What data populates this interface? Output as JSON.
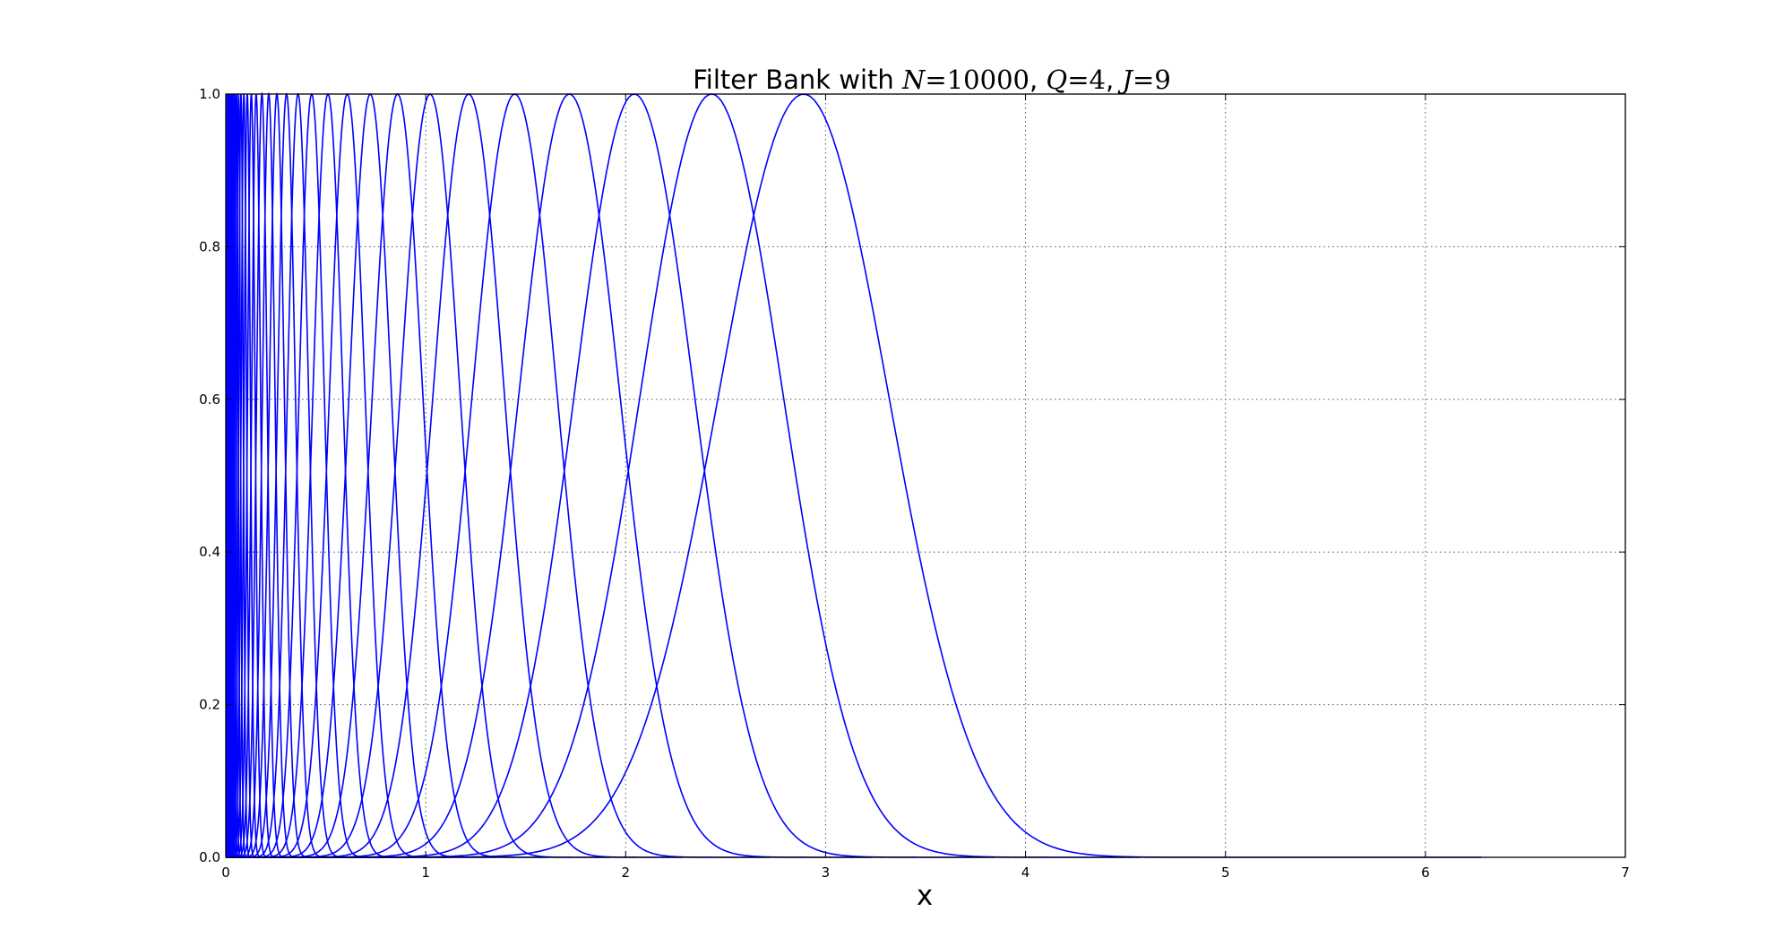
{
  "chart_data": {
    "type": "line",
    "title": {
      "prefix": "Filter Bank with ",
      "N_symbol": "N",
      "N_value": "10000",
      "Q_symbol": "Q",
      "Q_value": "4",
      "J_symbol": "J",
      "J_value": "9",
      "equals": "=",
      "separator": ", "
    },
    "xlabel": "x",
    "ylabel": "",
    "xlim": [
      0,
      7
    ],
    "ylim": [
      0,
      1
    ],
    "x_ticks": [
      "0",
      "1",
      "2",
      "3",
      "4",
      "5",
      "6",
      "7"
    ],
    "y_ticks": [
      "0.0",
      "0.2",
      "0.4",
      "0.6",
      "0.8",
      "1.0"
    ],
    "grid": true,
    "series_color": "#0000ff",
    "x_end": 6.28,
    "filter_bank": {
      "num_filters": 36,
      "max_center": 2.89,
      "ratio_per_filter": 0.8409,
      "peak": 1.0,
      "sigma_to_center": 0.147
    }
  }
}
